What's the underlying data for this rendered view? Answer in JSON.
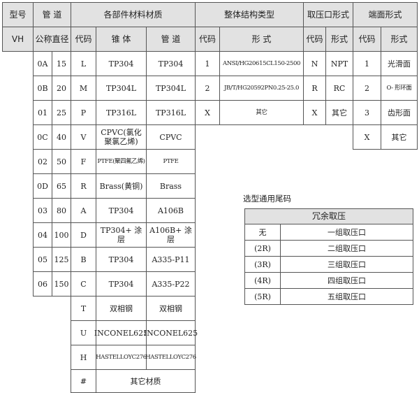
{
  "header": {
    "model": "型号",
    "pipe": "管 道",
    "materials": "各部件材料材质",
    "structure": "整体结构类型",
    "port": "取压口形式",
    "end": "端面形式"
  },
  "subheader": {
    "model_code": "VH",
    "nominal_diameter": "公称直径",
    "mat_code": "代码",
    "cone": "锥 体",
    "pipe": "管 道",
    "struct_code": "代码",
    "struct_form": "形 式",
    "port_code": "代码",
    "port_form": "形式",
    "end_code": "代码",
    "end_form": "形式"
  },
  "diameters": [
    {
      "code": "0A",
      "size": "15"
    },
    {
      "code": "0B",
      "size": "20"
    },
    {
      "code": "01",
      "size": "25"
    },
    {
      "code": "0C",
      "size": "40"
    },
    {
      "code": "02",
      "size": "50"
    },
    {
      "code": "0D",
      "size": "65"
    },
    {
      "code": "03",
      "size": "80"
    },
    {
      "code": "04",
      "size": "100"
    },
    {
      "code": "05",
      "size": "125"
    },
    {
      "code": "06",
      "size": "150"
    }
  ],
  "materials": [
    {
      "code": "L",
      "cone": "TP304",
      "pipe": "TP304"
    },
    {
      "code": "M",
      "cone": "TP304L",
      "pipe": "TP304L"
    },
    {
      "code": "P",
      "cone": "TP316L",
      "pipe": "TP316L"
    },
    {
      "code": "V",
      "cone": "CPVC(氯化聚氯乙烯)",
      "pipe": "CPVC"
    },
    {
      "code": "F",
      "cone": "PTFE(聚四氟乙烯)",
      "pipe": "PTFE"
    },
    {
      "code": "R",
      "cone": "Brass(黄铜)",
      "pipe": "Brass"
    },
    {
      "code": "A",
      "cone": "TP304",
      "pipe": "A106B"
    },
    {
      "code": "D",
      "cone": "TP304+ 涂层",
      "pipe": "A106B+ 涂层"
    },
    {
      "code": "B",
      "cone": "TP304",
      "pipe": "A335-P11"
    },
    {
      "code": "C",
      "cone": "TP304",
      "pipe": "A335-P22"
    },
    {
      "code": "T",
      "cone": "双相钢",
      "pipe": "双相钢"
    },
    {
      "code": "U",
      "cone": "INCONEL625",
      "pipe": "INCONEL625"
    },
    {
      "code": "H",
      "cone": "HASTELLOYC276",
      "pipe": "HASTELLOYC276"
    }
  ],
  "materials_other": {
    "code": "#",
    "label": "其它材质"
  },
  "structures": [
    {
      "code": "1",
      "form": "ANSI/HG20615CL150-2500"
    },
    {
      "code": "2",
      "form": "JB/T/HG20592PN0.25-25.0"
    },
    {
      "code": "X",
      "form": "其它"
    }
  ],
  "ports": [
    {
      "code": "N",
      "form": "NPT"
    },
    {
      "code": "R",
      "form": "RC"
    },
    {
      "code": "X",
      "form": "其它"
    }
  ],
  "ends": [
    {
      "code": "1",
      "form": "光滑面"
    },
    {
      "code": "2",
      "form": "O- 形环面"
    },
    {
      "code": "3",
      "form": "齿形面"
    },
    {
      "code": "X",
      "form": "其它"
    }
  ],
  "suffix": {
    "title": "选型通用尾码",
    "header": "冗余取压",
    "rows": [
      {
        "code": "无",
        "desc": "一组取压口"
      },
      {
        "code": "(2R)",
        "desc": "二组取压口"
      },
      {
        "code": "(3R)",
        "desc": "三组取压口"
      },
      {
        "code": "(4R)",
        "desc": "四组取压口"
      },
      {
        "code": "(5R)",
        "desc": "五组取压口"
      }
    ]
  }
}
